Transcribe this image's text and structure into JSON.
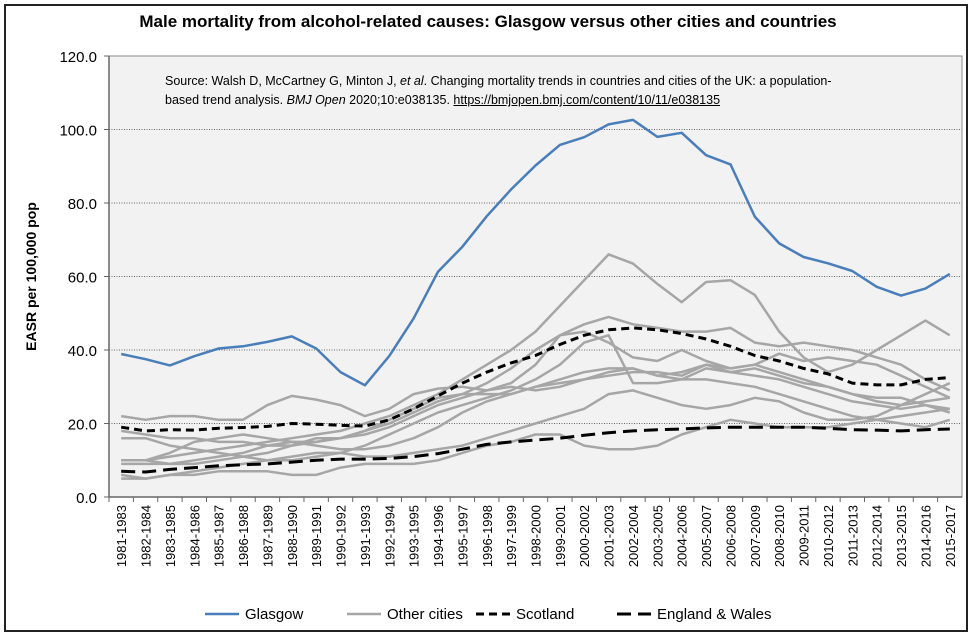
{
  "chart_data": {
    "type": "line",
    "title": "Male mortality from alcohol-related causes: Glasgow versus other cities and countries",
    "ylabel": "EASR per 100,000 pop",
    "xlabel": "",
    "ylim": [
      0,
      120
    ],
    "yticks": [
      "0.0",
      "20.0",
      "40.0",
      "60.0",
      "80.0",
      "100.0",
      "120.0"
    ],
    "grid": "horizontal dotted",
    "legend": "bottom",
    "annotation": {
      "line1": "Source: Walsh D, McCartney G, Minton J, ",
      "etal": "et al",
      "line1b": ". Changing mortality trends in countries and cities of the UK: a population-",
      "line2a": "based trend analysis. ",
      "journal": "BMJ Open",
      "line2b": " 2020;10:e038135. ",
      "link": "https://bmjopen.bmj.com/content/10/11/e038135"
    },
    "categories": [
      "1981-1983",
      "1982-1984",
      "1983-1985",
      "1984-1986",
      "1985-1987",
      "1986-1988",
      "1987-1989",
      "1988-1990",
      "1989-1991",
      "1990-1992",
      "1991-1993",
      "1992-1994",
      "1993-1995",
      "1994-1996",
      "1995-1997",
      "1996-1998",
      "1997-1999",
      "1998-2000",
      "1999-2001",
      "2000-2002",
      "2001-2003",
      "2002-2004",
      "2003-2005",
      "2004-2006",
      "2005-2007",
      "2006-2008",
      "2007-2009",
      "2008-2010",
      "2009-2011",
      "2010-2012",
      "2011-2013",
      "2012-2014",
      "2013-2015",
      "2014-2016",
      "2015-2017"
    ],
    "series": [
      {
        "name": "Other cities",
        "color": "#a6a6a6",
        "style": "solid",
        "values": [
          10,
          10,
          11,
          12,
          13,
          14,
          15,
          16,
          17,
          18,
          20,
          22,
          25,
          28,
          32,
          36,
          40,
          45,
          52,
          59,
          66,
          63.5,
          58,
          53,
          58.5,
          59,
          55,
          45,
          38,
          34,
          36,
          40,
          44,
          48,
          44
        ]
      },
      {
        "color": "#a6a6a6",
        "style": "solid",
        "values": [
          18,
          17,
          16,
          16,
          15,
          15,
          14,
          14,
          15,
          16,
          18,
          20,
          23,
          26,
          28,
          31,
          35,
          40,
          44,
          47,
          49,
          47,
          46,
          45,
          45,
          46,
          42,
          41,
          42,
          41,
          40,
          38,
          36,
          32,
          29
        ]
      },
      {
        "color": "#a6a6a6",
        "style": "solid",
        "values": [
          22,
          21,
          22,
          22,
          21,
          21,
          25,
          27.5,
          26.5,
          25,
          22,
          24,
          28,
          29.5,
          30,
          29,
          31,
          36,
          44,
          45,
          42,
          38,
          37,
          40,
          37,
          35,
          36,
          39,
          37,
          38,
          37,
          36,
          33,
          30,
          27
        ]
      },
      {
        "color": "#a6a6a6",
        "style": "solid",
        "values": [
          16,
          16,
          14,
          13,
          12,
          11,
          10,
          10,
          11,
          12,
          14,
          17,
          20,
          23,
          25,
          27,
          29,
          32,
          36,
          42,
          44,
          31,
          31,
          32,
          35,
          34,
          33,
          32,
          30,
          28,
          26,
          25,
          24,
          25,
          24
        ]
      },
      {
        "color": "#a6a6a6",
        "style": "solid",
        "values": [
          10,
          10,
          12,
          15,
          16,
          17,
          16,
          15,
          14,
          13,
          13,
          14,
          16,
          19,
          23,
          26,
          28,
          30,
          31,
          32,
          33,
          34,
          34,
          33,
          36,
          35,
          36,
          34,
          32,
          30,
          28,
          26,
          25,
          28,
          31
        ]
      },
      {
        "color": "#a6a6a6",
        "style": "solid",
        "values": [
          6,
          5,
          6,
          7,
          8,
          9,
          10,
          11,
          12,
          12,
          11,
          11,
          12,
          13,
          14,
          16,
          18,
          20,
          22,
          24,
          28,
          29,
          27,
          25,
          24,
          25,
          27,
          26,
          23,
          21,
          21,
          22,
          25,
          26,
          27
        ]
      },
      {
        "color": "#a6a6a6",
        "style": "solid",
        "values": [
          5,
          5,
          6,
          6,
          7,
          7,
          7,
          6,
          6,
          8,
          9,
          9,
          9,
          10,
          12,
          14,
          15,
          17,
          17,
          14,
          13,
          13,
          14,
          17,
          19,
          21,
          20,
          19,
          19,
          19,
          20,
          21,
          22,
          23,
          24
        ]
      },
      {
        "color": "#a6a6a6",
        "style": "solid",
        "values": [
          9,
          9,
          9,
          9,
          10,
          11,
          12,
          14,
          16,
          16,
          17,
          19,
          22,
          25,
          27,
          29,
          30,
          29,
          30,
          32,
          34,
          35,
          33,
          34,
          36,
          34,
          35,
          33,
          31,
          30,
          28,
          27,
          27,
          25,
          23
        ]
      },
      {
        "color": "#a6a6a6",
        "style": "solid",
        "values": [
          10,
          10,
          9,
          10,
          11,
          12,
          14,
          15,
          15,
          16,
          18,
          21,
          24,
          27,
          28,
          28,
          28,
          30,
          32,
          34,
          35,
          35,
          33,
          32,
          32,
          31,
          30,
          28,
          26,
          24,
          22,
          21,
          20,
          19,
          21
        ]
      },
      {
        "name": "England & Wales",
        "color": "#000000",
        "style": "longdash",
        "values": [
          7.0,
          6.8,
          7.5,
          8.0,
          8.5,
          8.8,
          9.0,
          9.5,
          10.0,
          10.3,
          10.3,
          10.5,
          11.0,
          11.8,
          13.0,
          14.3,
          15.0,
          15.5,
          16.0,
          16.8,
          17.5,
          18.0,
          18.3,
          18.5,
          18.8,
          19.0,
          19.0,
          19.0,
          19.0,
          18.7,
          18.3,
          18.2,
          18.0,
          18.3,
          18.5
        ]
      },
      {
        "name": "Scotland",
        "color": "#000000",
        "style": "dash",
        "values": [
          19.0,
          18.0,
          18.3,
          18.2,
          18.7,
          18.9,
          19.2,
          20.0,
          19.8,
          19.5,
          19.3,
          21.0,
          24.0,
          27.5,
          31.0,
          34.0,
          36.5,
          38.5,
          41.5,
          44.0,
          45.5,
          46.0,
          45.5,
          44.5,
          43.0,
          41.0,
          38.5,
          37.0,
          35.0,
          33.5,
          31.0,
          30.5,
          30.5,
          32.0,
          32.5
        ]
      },
      {
        "name": "Glasgow",
        "color": "#4a7ebb",
        "style": "solid",
        "values": [
          38.9,
          37.5,
          35.8,
          38.3,
          40.4,
          41.0,
          42.2,
          43.7,
          40.4,
          34.0,
          30.4,
          38.4,
          48.6,
          61.3,
          68.1,
          76.4,
          83.7,
          90.2,
          95.8,
          97.9,
          101.4,
          102.6,
          98.0,
          99.1,
          93.0,
          90.5,
          76.3,
          69.0,
          65.3,
          63.6,
          61.5,
          57.2,
          54.8,
          56.7,
          60.7
        ]
      }
    ],
    "legend_items": [
      {
        "label": "Glasgow",
        "color": "#4a7ebb",
        "style": "solid"
      },
      {
        "label": "Other cities",
        "color": "#a6a6a6",
        "style": "solid"
      },
      {
        "label": "Scotland",
        "color": "#000000",
        "style": "dash"
      },
      {
        "label": "England & Wales",
        "color": "#000000",
        "style": "longdash"
      }
    ]
  }
}
